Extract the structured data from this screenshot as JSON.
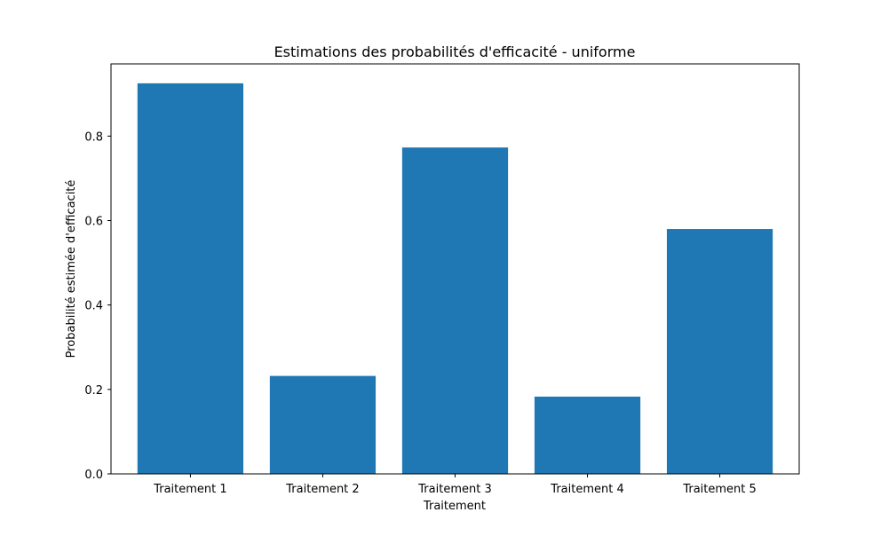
{
  "chart_data": {
    "type": "bar",
    "title": "Estimations des probabilités d'efficacité - uniforme",
    "xlabel": "Traitement",
    "ylabel": "Probabilité estimée d'efficacité",
    "categories": [
      "Traitement 1",
      "Traitement 2",
      "Traitement 3",
      "Traitement 4",
      "Traitement 5"
    ],
    "values": [
      0.925,
      0.232,
      0.773,
      0.183,
      0.58
    ],
    "ylim": [
      0,
      0.971
    ],
    "yticks": [
      0.0,
      0.2,
      0.4,
      0.6,
      0.8
    ],
    "ytick_labels": [
      "0.0",
      "0.2",
      "0.4",
      "0.6",
      "0.8"
    ],
    "bar_color": "#1f77b4",
    "grid": false,
    "legend": "none"
  }
}
